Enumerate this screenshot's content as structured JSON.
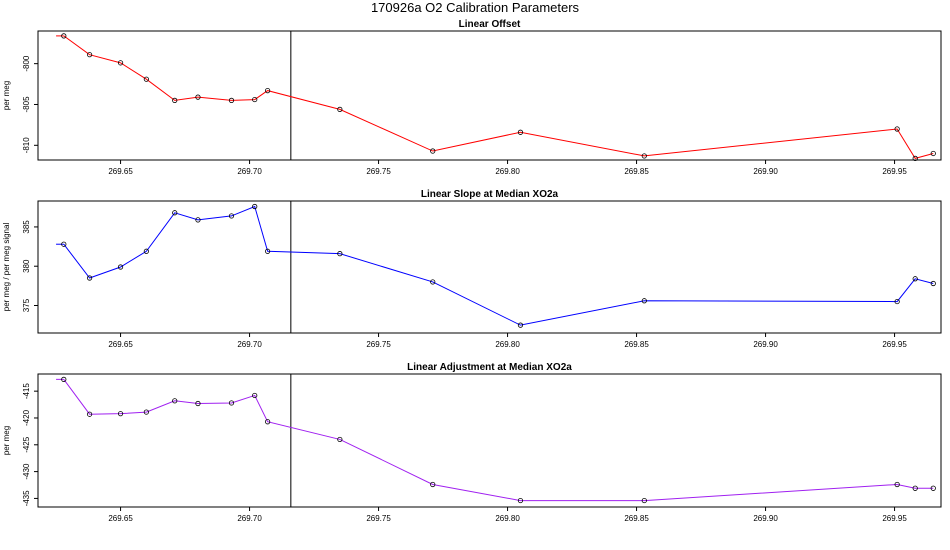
{
  "title": "170926a   O2 Calibration Parameters",
  "chart_data": [
    {
      "type": "line",
      "title": "Linear Offset",
      "xlabel": "",
      "ylabel": "per meg",
      "color": "#ff0000",
      "xlim": [
        269.618,
        269.968
      ],
      "ylim": [
        -811.8,
        -796.0
      ],
      "xticks": [
        "269.65",
        "269.70",
        "269.75",
        "269.80",
        "269.85",
        "269.90",
        "269.95"
      ],
      "yticks": [
        "-800",
        "-805",
        "-810"
      ],
      "vline_x": 269.716,
      "lead_in": [
        [
          269.625,
          -796.6
        ],
        [
          269.628,
          -796.6
        ]
      ],
      "x": [
        269.628,
        269.638,
        269.65,
        269.66,
        269.671,
        269.68,
        269.693,
        269.702,
        269.707,
        269.735,
        269.771,
        269.805,
        269.853,
        269.951,
        269.958,
        269.965
      ],
      "y": [
        -796.6,
        -798.9,
        -799.9,
        -801.9,
        -804.5,
        -804.1,
        -804.5,
        -804.4,
        -803.3,
        -805.6,
        -810.7,
        -808.4,
        -811.3,
        -808.0,
        -811.6,
        -811.0
      ]
    },
    {
      "type": "line",
      "title": "Linear Slope at Median XO2a",
      "xlabel": "",
      "ylabel": "per meg / per meg signal",
      "color": "#0000ff",
      "xlim": [
        269.618,
        269.968
      ],
      "ylim": [
        371.5,
        388.3
      ],
      "xticks": [
        "269.65",
        "269.70",
        "269.75",
        "269.80",
        "269.85",
        "269.90",
        "269.95"
      ],
      "yticks": [
        "385",
        "380",
        "375"
      ],
      "vline_x": 269.716,
      "lead_in": [
        [
          269.625,
          382.8
        ],
        [
          269.628,
          382.8
        ]
      ],
      "x": [
        269.628,
        269.638,
        269.65,
        269.66,
        269.671,
        269.68,
        269.693,
        269.702,
        269.707,
        269.735,
        269.771,
        269.805,
        269.853,
        269.951,
        269.958,
        269.965
      ],
      "y": [
        382.8,
        378.5,
        379.9,
        381.9,
        386.8,
        385.9,
        386.4,
        387.6,
        381.9,
        381.6,
        378.0,
        372.5,
        375.6,
        375.5,
        378.4,
        377.8
      ]
    },
    {
      "type": "line",
      "title": "Linear Adjustment at Median XO2a",
      "xlabel": "",
      "ylabel": "per meg",
      "color": "#a020f0",
      "xlim": [
        269.618,
        269.968
      ],
      "ylim": [
        -436.6,
        -411.8
      ],
      "xticks": [
        "269.65",
        "269.70",
        "269.75",
        "269.80",
        "269.85",
        "269.90",
        "269.95"
      ],
      "yticks": [
        "-415",
        "-420",
        "-425",
        "-430",
        "-435"
      ],
      "vline_x": 269.716,
      "lead_in": [
        [
          269.625,
          -412.8
        ],
        [
          269.628,
          -412.8
        ]
      ],
      "x": [
        269.628,
        269.638,
        269.65,
        269.66,
        269.671,
        269.68,
        269.693,
        269.702,
        269.707,
        269.735,
        269.771,
        269.805,
        269.853,
        269.951,
        269.958,
        269.965
      ],
      "y": [
        -412.8,
        -419.3,
        -419.2,
        -418.9,
        -416.8,
        -417.3,
        -417.2,
        -415.8,
        -420.7,
        -424.0,
        -432.4,
        -435.4,
        -435.4,
        -432.4,
        -433.1,
        -433.1
      ]
    }
  ]
}
